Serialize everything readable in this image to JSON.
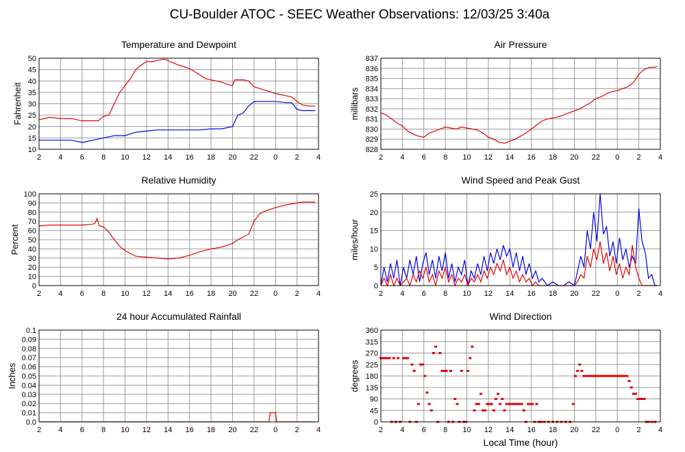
{
  "title": "CU-Boulder ATOC - SEEC Weather Observations: 12/03/25 3:40a",
  "x_axis_label": "Local Time (hour)",
  "x_ticks": [
    "2",
    "4",
    "6",
    "8",
    "10",
    "12",
    "14",
    "16",
    "18",
    "20",
    "22",
    "0",
    "2",
    "4"
  ],
  "colors": {
    "red": "#e00000",
    "blue": "#0000e0",
    "grid": "#999999"
  },
  "chart_data": [
    {
      "id": "temp",
      "type": "line",
      "title": "Temperature and Dewpoint",
      "ylabel": "Fahrenheit",
      "ylim": [
        10,
        50
      ],
      "yticks": [
        10,
        15,
        20,
        25,
        30,
        35,
        40,
        45,
        50
      ],
      "ytick_labels": [
        "10",
        "15",
        "20",
        "25",
        "30",
        "35",
        "40",
        "45",
        "50"
      ],
      "xlim": [
        2,
        28
      ],
      "series": [
        {
          "color": "red",
          "x": [
            2,
            3,
            4,
            5,
            6,
            7,
            7.5,
            8,
            8.5,
            9,
            9.5,
            10,
            10.5,
            11,
            11.5,
            12,
            12.5,
            13,
            13.5,
            13.8,
            14.2,
            15,
            16,
            17,
            17.5,
            18,
            19,
            19.5,
            20,
            20.2,
            21,
            21.5,
            22,
            23,
            24,
            25,
            25.5,
            26,
            26.5,
            27,
            27.7
          ],
          "y": [
            23,
            24,
            23.5,
            23.5,
            22.5,
            22.5,
            22.5,
            24.5,
            25,
            30,
            35,
            38,
            41,
            45,
            47,
            48.5,
            48.5,
            49,
            49.5,
            49.5,
            48.5,
            47,
            45.5,
            42.5,
            41,
            40.5,
            39.5,
            38.5,
            38,
            40.5,
            40.5,
            40,
            37.5,
            36,
            34.5,
            33.5,
            33,
            31,
            29.5,
            29,
            29
          ]
        },
        {
          "color": "blue",
          "x": [
            2,
            3,
            4,
            5,
            6,
            6.5,
            7,
            8,
            9,
            10,
            11,
            12,
            13,
            14,
            15,
            16,
            17,
            18,
            19,
            19.5,
            20,
            20.2,
            20.5,
            21,
            21.5,
            22,
            23,
            24,
            25,
            25.5,
            26,
            26.5,
            27,
            27.7
          ],
          "y": [
            14,
            14,
            14,
            14,
            13,
            13.5,
            14,
            15,
            16,
            16,
            17.5,
            18,
            18.5,
            18.5,
            18.5,
            18.5,
            18.5,
            19,
            19,
            19.5,
            20,
            22,
            25,
            26,
            29,
            31,
            31,
            31,
            30.5,
            30.5,
            27.5,
            27,
            27,
            27
          ]
        }
      ]
    },
    {
      "id": "pressure",
      "type": "line",
      "title": "Air Pressure",
      "ylabel": "millibars",
      "ylim": [
        828,
        837
      ],
      "yticks": [
        828,
        829,
        830,
        831,
        832,
        833,
        834,
        835,
        836,
        837
      ],
      "ytick_labels": [
        "828",
        "829",
        "830",
        "831",
        "832",
        "833",
        "834",
        "835",
        "836",
        "837"
      ],
      "xlim": [
        2,
        28
      ],
      "series": [
        {
          "color": "red",
          "x": [
            2,
            2.5,
            3,
            3.5,
            4,
            4.5,
            5,
            5.5,
            6,
            6.5,
            7,
            7.5,
            8,
            8.5,
            9,
            9.5,
            10,
            10.5,
            11,
            11.5,
            12,
            12.5,
            13,
            13.5,
            14,
            14.5,
            15,
            15.5,
            16,
            16.5,
            17,
            17.5,
            18,
            18.5,
            19,
            19.5,
            20,
            20.5,
            21,
            21.5,
            22,
            22.5,
            23,
            23.5,
            24,
            24.5,
            25,
            25.5,
            26,
            26.5,
            27,
            27.5,
            27.7
          ],
          "y": [
            831.6,
            831.4,
            831,
            830.6,
            830.3,
            829.8,
            829.5,
            829.3,
            829.2,
            829.6,
            829.8,
            830,
            830.2,
            830.1,
            830,
            830.2,
            830.1,
            830,
            829.9,
            829.6,
            829.2,
            829,
            828.7,
            828.6,
            828.8,
            829,
            829.3,
            829.6,
            830,
            830.4,
            830.8,
            831,
            831.1,
            831.2,
            831.4,
            831.6,
            831.8,
            832,
            832.3,
            832.6,
            833,
            833.2,
            833.5,
            833.7,
            833.8,
            834,
            834.2,
            834.6,
            835.4,
            835.9,
            836.1,
            836.1,
            836.2
          ]
        }
      ]
    },
    {
      "id": "rh",
      "type": "line",
      "title": "Relative Humidity",
      "ylabel": "Percent",
      "ylim": [
        0,
        100
      ],
      "yticks": [
        0,
        10,
        20,
        30,
        40,
        50,
        60,
        70,
        80,
        90,
        100
      ],
      "ytick_labels": [
        "0",
        "10",
        "20",
        "30",
        "40",
        "50",
        "60",
        "70",
        "80",
        "90",
        "100"
      ],
      "xlim": [
        2,
        28
      ],
      "series": [
        {
          "color": "red",
          "x": [
            2,
            3,
            4,
            5,
            6,
            7,
            7.2,
            7.4,
            7.6,
            8,
            8.5,
            9,
            9.5,
            10,
            10.5,
            11,
            12,
            13,
            14,
            15,
            16,
            17,
            18,
            19,
            20,
            20.5,
            21,
            21.5,
            22,
            22.5,
            23,
            24,
            25,
            26,
            26.5,
            27,
            27.7
          ],
          "y": [
            65,
            66,
            66,
            66,
            66,
            67,
            68,
            73,
            65,
            64,
            58,
            50,
            43,
            38,
            35,
            32,
            31,
            30,
            29,
            30,
            33,
            37,
            40,
            42,
            46,
            50,
            53,
            56,
            70,
            78,
            81,
            85,
            88,
            90,
            91,
            91,
            91
          ]
        }
      ]
    },
    {
      "id": "wind",
      "type": "line",
      "title": "Wind Speed and Peak Gust",
      "ylabel": "miles/hour",
      "ylim": [
        0,
        25
      ],
      "yticks": [
        0,
        5,
        10,
        15,
        20,
        25
      ],
      "ytick_labels": [
        "0",
        "5",
        "10",
        "15",
        "20",
        "25"
      ],
      "xlim": [
        2,
        28
      ],
      "series": [
        {
          "color": "blue",
          "x": [
            2,
            2.3,
            2.6,
            2.9,
            3.2,
            3.5,
            3.8,
            4.1,
            4.4,
            4.7,
            5,
            5.3,
            5.6,
            5.9,
            6.2,
            6.5,
            6.8,
            7.1,
            7.4,
            7.7,
            8,
            8.3,
            8.6,
            8.9,
            9.2,
            9.5,
            9.8,
            10.1,
            10.4,
            10.7,
            11,
            11.3,
            11.6,
            11.9,
            12.2,
            12.5,
            12.8,
            13.1,
            13.4,
            13.7,
            14,
            14.3,
            14.6,
            14.9,
            15.2,
            15.5,
            15.8,
            16.1,
            16.4,
            16.7,
            17,
            17.5,
            18,
            18.5,
            19,
            19.5,
            20,
            20.3,
            20.6,
            20.9,
            21.2,
            21.5,
            21.8,
            22.1,
            22.4,
            22.7,
            23,
            23.3,
            23.6,
            23.9,
            24.2,
            24.5,
            24.8,
            25.1,
            25.4,
            25.7,
            26,
            26.3,
            26.6,
            26.9,
            27.2,
            27.5,
            27.7
          ],
          "y": [
            0,
            5,
            1,
            6,
            2,
            7,
            0,
            5,
            2,
            7,
            3,
            8,
            1,
            6,
            9,
            3,
            7,
            2,
            8,
            4,
            9,
            2,
            6,
            1,
            5,
            3,
            7,
            0,
            4,
            2,
            6,
            3,
            8,
            4,
            9,
            6,
            10,
            7,
            11,
            8,
            10,
            5,
            9,
            4,
            8,
            3,
            6,
            2,
            4,
            1,
            2,
            0,
            1,
            0,
            0,
            1,
            0,
            4,
            8,
            5,
            15,
            10,
            20,
            12,
            25,
            14,
            16,
            8,
            12,
            6,
            13,
            7,
            10,
            5,
            8,
            6,
            21,
            12,
            9,
            2,
            3,
            0,
            0
          ]
        },
        {
          "color": "red",
          "x": [
            2,
            2.3,
            2.6,
            2.9,
            3.2,
            3.5,
            3.8,
            4.1,
            4.4,
            4.7,
            5,
            5.3,
            5.6,
            5.9,
            6.2,
            6.5,
            6.8,
            7.1,
            7.4,
            7.7,
            8,
            8.3,
            8.6,
            8.9,
            9.2,
            9.5,
            9.8,
            10.1,
            10.4,
            10.7,
            11,
            11.3,
            11.6,
            11.9,
            12.2,
            12.5,
            12.8,
            13.1,
            13.4,
            13.7,
            14,
            14.3,
            14.6,
            14.9,
            15.2,
            15.5,
            15.8,
            16.1,
            16.4,
            16.7,
            17,
            18,
            19,
            20,
            20.3,
            20.6,
            20.9,
            21.2,
            21.5,
            21.8,
            22.1,
            22.4,
            22.7,
            23,
            23.3,
            23.6,
            23.9,
            24.2,
            24.5,
            24.8,
            25.1,
            25.4,
            25.7,
            26,
            26.3,
            26.6,
            26.9,
            27.7
          ],
          "y": [
            0,
            2,
            0,
            3,
            0,
            2,
            0,
            1,
            2,
            0,
            3,
            1,
            4,
            2,
            5,
            1,
            3,
            0,
            4,
            2,
            5,
            1,
            3,
            0,
            2,
            1,
            3,
            0,
            2,
            1,
            3,
            1,
            4,
            2,
            5,
            3,
            6,
            4,
            7,
            3,
            5,
            2,
            4,
            1,
            3,
            1,
            2,
            0,
            1,
            0,
            0,
            0,
            0,
            0,
            1,
            3,
            2,
            8,
            5,
            10,
            7,
            12,
            6,
            9,
            4,
            8,
            3,
            6,
            2,
            5,
            3,
            11,
            5,
            2,
            0,
            0,
            0,
            0
          ]
        }
      ]
    },
    {
      "id": "rain",
      "type": "line",
      "title": "24 hour Accumulated Rainfall",
      "ylabel": "Inches",
      "ylim": [
        0,
        0.1
      ],
      "yticks": [
        0,
        0.01,
        0.02,
        0.03,
        0.04,
        0.05,
        0.06,
        0.07,
        0.08,
        0.09,
        0.1
      ],
      "ytick_labels": [
        "0.0",
        "0.01",
        "0.02",
        "0.03",
        "0.04",
        "0.05",
        "0.06",
        "0.07",
        "0.08",
        "0.09",
        "0.1"
      ],
      "xlim": [
        2,
        28
      ],
      "series": [
        {
          "color": "red",
          "x": [
            2,
            23.4,
            23.5,
            24,
            24.1,
            27.7
          ],
          "y": [
            0,
            0,
            0.01,
            0.01,
            0,
            0
          ]
        }
      ]
    },
    {
      "id": "winddir",
      "type": "scatter",
      "title": "Wind Direction",
      "ylabel": "degrees",
      "ylim": [
        0,
        360
      ],
      "yticks": [
        0,
        45,
        90,
        135,
        180,
        225,
        270,
        315,
        360
      ],
      "ytick_labels": [
        "0",
        "45",
        "90",
        "135",
        "180",
        "225",
        "270",
        "315",
        "360"
      ],
      "xlim": [
        2,
        28
      ],
      "series": [
        {
          "color": "red",
          "x": [
            2,
            2.2,
            2.4,
            2.6,
            2.8,
            3,
            3.2,
            3.4,
            3.6,
            3.8,
            4.1,
            4.3,
            4.5,
            4.7,
            4.9,
            5.1,
            5.3,
            5.5,
            5.7,
            5.9,
            6.1,
            6.3,
            6.5,
            6.7,
            6.9,
            7.1,
            7.3,
            7.5,
            7.7,
            7.9,
            8.1,
            8.3,
            8.5,
            8.7,
            8.9,
            9.1,
            9.3,
            9.5,
            9.7,
            9.9,
            10.1,
            10.3,
            10.5,
            10.7,
            10.9,
            11.1,
            11.3,
            11.5,
            11.7,
            11.9,
            12.1,
            12.3,
            12.5,
            12.7,
            12.9,
            13.1,
            13.3,
            13.5,
            13.7,
            13.9,
            14.1,
            14.3,
            14.5,
            14.7,
            14.9,
            15.1,
            15.3,
            15.5,
            15.7,
            15.9,
            16.1,
            16.3,
            16.5,
            16.7,
            16.9,
            17.2,
            17.6,
            18,
            18.4,
            18.8,
            19.2,
            19.6,
            19.9,
            20.1,
            20.3,
            20.5,
            20.7,
            20.9,
            21.1,
            21.3,
            21.5,
            21.7,
            21.9,
            22.1,
            22.3,
            22.5,
            22.7,
            22.9,
            23.1,
            23.3,
            23.5,
            23.7,
            23.9,
            24.1,
            24.3,
            24.5,
            24.7,
            24.9,
            25.1,
            25.3,
            25.5,
            25.7,
            25.9,
            26.1,
            26.3,
            26.5,
            26.7,
            26.9,
            27.2,
            27.5
          ],
          "y": [
            250,
            250,
            250,
            250,
            250,
            0,
            250,
            0,
            250,
            0,
            250,
            250,
            250,
            0,
            225,
            200,
            0,
            70,
            225,
            225,
            180,
            115,
            70,
            45,
            270,
            295,
            0,
            270,
            200,
            200,
            200,
            0,
            200,
            0,
            90,
            70,
            0,
            200,
            0,
            0,
            200,
            250,
            295,
            45,
            70,
            70,
            110,
            45,
            45,
            70,
            70,
            70,
            45,
            90,
            110,
            70,
            90,
            45,
            70,
            70,
            70,
            70,
            70,
            70,
            70,
            70,
            45,
            0,
            70,
            70,
            70,
            0,
            70,
            0,
            0,
            0,
            0,
            0,
            0,
            0,
            0,
            0,
            70,
            180,
            200,
            225,
            200,
            180,
            180,
            180,
            180,
            180,
            180,
            180,
            180,
            180,
            180,
            180,
            180,
            180,
            180,
            180,
            180,
            180,
            180,
            180,
            180,
            180,
            160,
            135,
            110,
            110,
            90,
            90,
            90,
            90,
            0,
            0,
            0,
            0
          ]
        }
      ]
    }
  ]
}
